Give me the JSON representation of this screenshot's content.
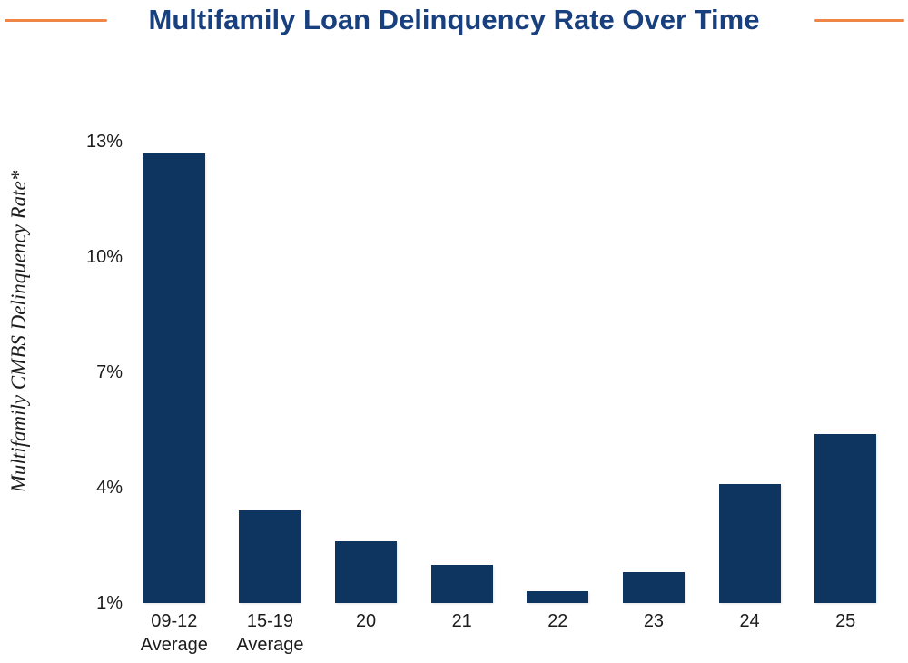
{
  "page": {
    "background": "#ffffff"
  },
  "header": {
    "title": "Multifamily Loan Delinquency Rate Over Time",
    "title_color": "#183f7e",
    "rule_color": "#ef8645"
  },
  "chart_data": {
    "type": "bar",
    "title": "Multifamily Loan Delinquency Rate Over Time",
    "ylabel": "Multifamily CMBS Delinquency Rate*",
    "xlabel": "",
    "categories": [
      "09-12 Average",
      "15-19 Average",
      "20",
      "21",
      "22",
      "23",
      "24",
      "25"
    ],
    "category_lines": [
      [
        "09-12",
        "Average"
      ],
      [
        "15-19",
        "Average"
      ],
      [
        "20"
      ],
      [
        "21"
      ],
      [
        "22"
      ],
      [
        "23"
      ],
      [
        "24"
      ],
      [
        "25"
      ]
    ],
    "values": [
      12.7,
      3.4,
      2.6,
      2.0,
      1.3,
      1.8,
      4.1,
      5.4
    ],
    "unit": "%",
    "y_ticks": [
      {
        "value": 1,
        "label": "1%"
      },
      {
        "value": 4,
        "label": "4%"
      },
      {
        "value": 7,
        "label": "7%"
      },
      {
        "value": 10,
        "label": "10%"
      },
      {
        "value": 13,
        "label": "13%"
      }
    ],
    "ylim": [
      1,
      13.62
    ],
    "bar_color": "#0e3560",
    "text_color": "#1c1c1c",
    "grid": false,
    "legend": null
  }
}
